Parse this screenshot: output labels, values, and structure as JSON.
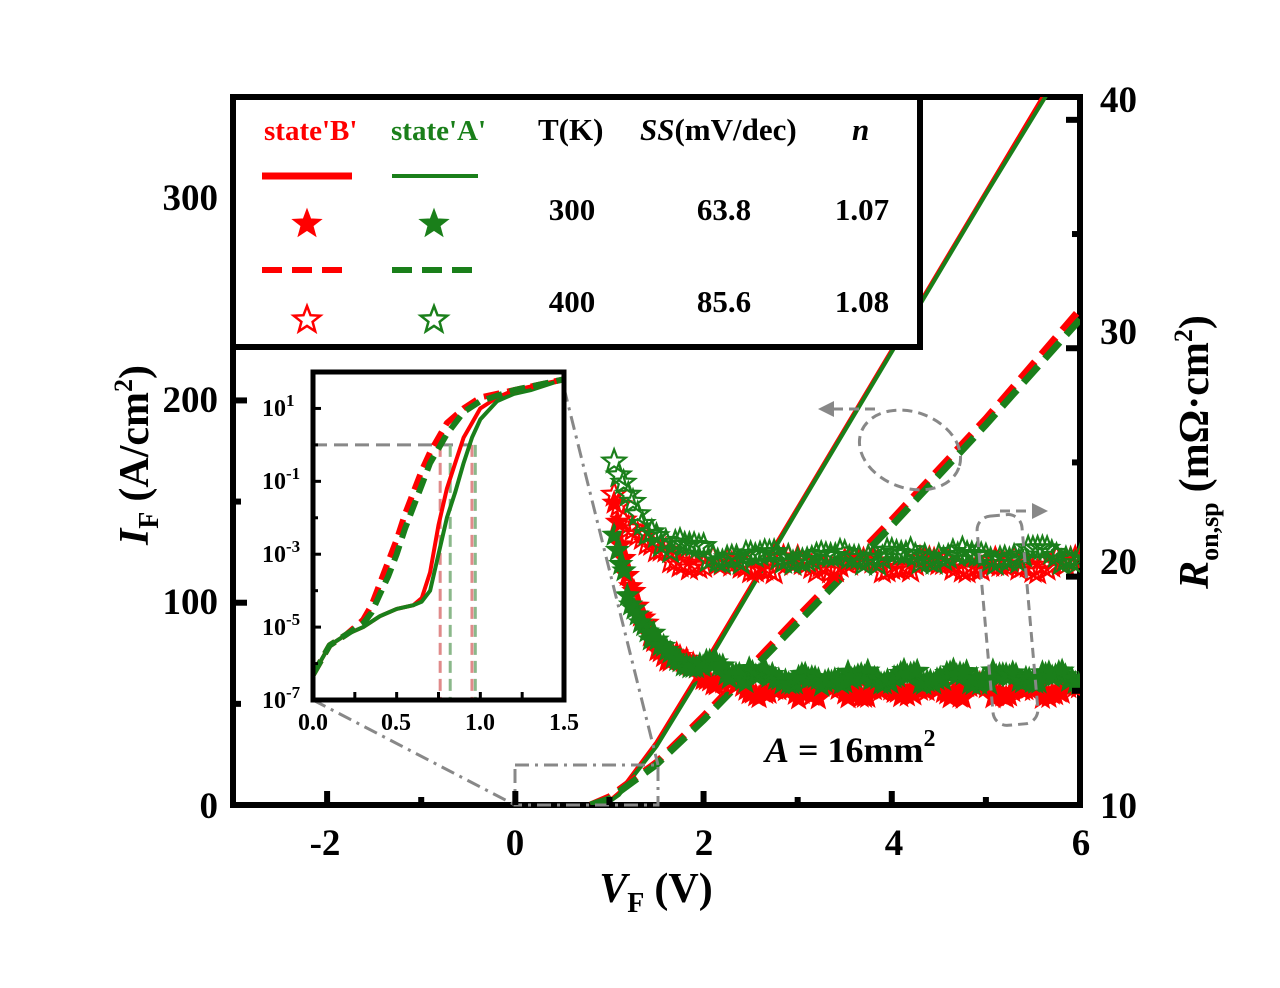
{
  "chart_data": {
    "type": "line",
    "x_axis": {
      "label_main": "V",
      "label_sub": "F",
      "label_unit": "(V)",
      "range": [
        -3,
        6
      ],
      "ticks": [
        "-2",
        "0",
        "2",
        "4",
        "6"
      ]
    },
    "y_axis_left": {
      "label_main": "I",
      "label_sub": "F",
      "label_unit_prefix": "(A/cm",
      "label_unit_sup": "2",
      "label_unit_suffix": ")",
      "range": [
        0,
        350
      ],
      "ticks": [
        "0",
        "100",
        "200",
        "300"
      ]
    },
    "y_axis_right": {
      "label_main": "R",
      "label_sub": "on,sp",
      "label_unit_prefix": "(mΩ·cm",
      "label_unit_sup": "2",
      "label_unit_suffix": ")",
      "range": [
        10,
        41
      ],
      "ticks": [
        "10",
        "20",
        "30",
        "40"
      ]
    },
    "legend": {
      "col_b": "state'B'",
      "col_a": "state'A'",
      "col_t": "T(K)",
      "col_ss_italic": "SS",
      "col_ss_rest": "(mV/dec)",
      "col_n": "n",
      "rows": [
        {
          "T": "300",
          "SS": "63.8",
          "n": "1.07"
        },
        {
          "T": "400",
          "SS": "85.6",
          "n": "1.08"
        }
      ]
    },
    "annotation": {
      "prefix": "A",
      "text": " = 16mm",
      "sup": "2"
    },
    "colors": {
      "state_B": "#ff0000",
      "state_A": "#1a7f1a",
      "guide": "#888888"
    },
    "series": [
      {
        "name": "state'B' 300 K I-V",
        "axis": "left",
        "style": "solid",
        "color": "#ff0000",
        "x": [
          0.95,
          1.1,
          1.5,
          2.0,
          3.0,
          4.0,
          5.0,
          6.0
        ],
        "y": [
          0,
          6,
          31,
          69,
          147,
          225,
          303,
          381
        ]
      },
      {
        "name": "state'A' 300 K I-V",
        "axis": "left",
        "style": "solid",
        "color": "#1a7f1a",
        "x": [
          0.95,
          1.1,
          1.5,
          2.0,
          3.0,
          4.0,
          5.0,
          6.0
        ],
        "y": [
          0,
          5,
          29,
          67,
          146,
          224,
          302,
          378
        ]
      },
      {
        "name": "state'B' 400 K I-V",
        "axis": "left",
        "style": "dashed",
        "color": "#ff0000",
        "x": [
          0.8,
          1.0,
          1.5,
          2.0,
          3.0,
          4.0,
          5.0,
          6.0
        ],
        "y": [
          0,
          4,
          21,
          44,
          93,
          141,
          191,
          245
        ]
      },
      {
        "name": "state'A' 400 K I-V",
        "axis": "left",
        "style": "dashed",
        "color": "#1a7f1a",
        "x": [
          0.8,
          1.0,
          1.5,
          2.0,
          3.0,
          4.0,
          5.0,
          6.0
        ],
        "y": [
          0,
          3,
          20,
          42,
          90,
          138,
          188,
          240
        ]
      },
      {
        "name": "state'B' 300 K Ron",
        "axis": "right",
        "marker": "filled-star",
        "color": "#ff0000",
        "x": [
          1.05,
          1.1,
          1.2,
          1.3,
          1.45,
          1.6,
          1.8,
          2.0,
          2.3,
          2.6,
          3.0,
          3.5,
          4.0,
          4.5,
          5.0,
          5.5,
          6.0
        ],
        "y": [
          23.5,
          22.0,
          19.8,
          18.5,
          17.4,
          16.6,
          16.1,
          15.7,
          15.2,
          15.0,
          15.0,
          15.0,
          15.0,
          15.0,
          15.0,
          15.0,
          15.0
        ]
      },
      {
        "name": "state'A' 300 K Ron",
        "axis": "right",
        "marker": "filled-star",
        "color": "#1a7f1a",
        "x": [
          1.05,
          1.1,
          1.2,
          1.3,
          1.45,
          1.6,
          1.8,
          2.0,
          2.3,
          2.6,
          3.0,
          3.5,
          4.0,
          4.5,
          5.0,
          5.5,
          6.0
        ],
        "y": [
          21.8,
          20.8,
          19.3,
          18.3,
          17.3,
          16.6,
          16.2,
          16.0,
          15.8,
          15.6,
          15.5,
          15.5,
          15.6,
          15.6,
          15.6,
          15.6,
          15.6
        ]
      },
      {
        "name": "state'B' 400 K Ron",
        "axis": "right",
        "marker": "open-star",
        "color": "#ff0000",
        "x": [
          1.05,
          1.15,
          1.3,
          1.5,
          1.7,
          2.0,
          2.4,
          3.0,
          3.5,
          4.0,
          4.5,
          5.0,
          5.5,
          6.0
        ],
        "y": [
          23.6,
          22.8,
          21.8,
          21.0,
          20.7,
          20.5,
          20.5,
          20.5,
          20.5,
          20.5,
          20.5,
          20.5,
          20.5,
          20.5
        ]
      },
      {
        "name": "state'A' 400 K Ron",
        "axis": "right",
        "marker": "open-star",
        "color": "#1a7f1a",
        "x": [
          1.05,
          1.15,
          1.3,
          1.5,
          1.7,
          2.0,
          2.4,
          3.0,
          3.5,
          4.0,
          4.5,
          5.0,
          5.5,
          6.0
        ],
        "y": [
          25.0,
          23.8,
          22.6,
          21.8,
          21.3,
          21.0,
          20.9,
          20.9,
          20.9,
          20.9,
          20.9,
          20.9,
          20.9,
          20.9
        ]
      }
    ],
    "inset": {
      "type": "line",
      "y_scale": "log",
      "x_range": [
        0.0,
        1.5
      ],
      "y_range_log10": [
        -7,
        2
      ],
      "x_ticks": [
        "0.0",
        "0.5",
        "1.0",
        "1.5"
      ],
      "y_ticks": [
        {
          "base": "10",
          "exp": "-7"
        },
        {
          "base": "10",
          "exp": "-5"
        },
        {
          "base": "10",
          "exp": "-3"
        },
        {
          "base": "10",
          "exp": "-1"
        },
        {
          "base": "10",
          "exp": "1"
        }
      ],
      "series": [
        {
          "name": "state'B' 300 K",
          "style": "solid",
          "color": "#ff0000",
          "x": [
            0.0,
            0.1,
            0.2,
            0.3,
            0.4,
            0.5,
            0.6,
            0.65,
            0.7,
            0.75,
            0.8,
            0.85,
            0.9,
            0.95,
            1.0,
            1.1,
            1.2,
            1.3,
            1.5
          ],
          "log10_y": [
            -6.3,
            -5.5,
            -5.2,
            -5.0,
            -4.7,
            -4.5,
            -4.4,
            -4.2,
            -3.5,
            -2.2,
            -1.2,
            -0.5,
            0.2,
            0.6,
            1.0,
            1.3,
            1.5,
            1.6,
            1.8
          ]
        },
        {
          "name": "state'A' 300 K",
          "style": "solid",
          "color": "#1a7f1a",
          "x": [
            0.0,
            0.1,
            0.2,
            0.3,
            0.4,
            0.5,
            0.6,
            0.65,
            0.7,
            0.75,
            0.8,
            0.85,
            0.9,
            0.95,
            1.0,
            1.1,
            1.2,
            1.3,
            1.5
          ],
          "log10_y": [
            -6.3,
            -5.5,
            -5.2,
            -5.0,
            -4.7,
            -4.5,
            -4.4,
            -4.3,
            -4.0,
            -3.0,
            -2.0,
            -1.3,
            -0.5,
            0.2,
            0.7,
            1.2,
            1.4,
            1.5,
            1.8
          ]
        },
        {
          "name": "state'B' 400 K",
          "style": "dashed",
          "color": "#ff0000",
          "x": [
            0.0,
            0.1,
            0.2,
            0.3,
            0.35,
            0.4,
            0.45,
            0.5,
            0.55,
            0.6,
            0.65,
            0.7,
            0.8,
            0.9,
            1.0,
            1.2,
            1.5
          ],
          "log10_y": [
            -6.3,
            -5.5,
            -5.2,
            -4.8,
            -4.4,
            -3.8,
            -3.2,
            -2.6,
            -1.9,
            -1.3,
            -0.7,
            -0.2,
            0.6,
            1.0,
            1.3,
            1.5,
            1.8
          ]
        },
        {
          "name": "state'A' 400 K",
          "style": "dashed",
          "color": "#1a7f1a",
          "x": [
            0.0,
            0.1,
            0.2,
            0.3,
            0.35,
            0.4,
            0.45,
            0.5,
            0.55,
            0.6,
            0.65,
            0.7,
            0.8,
            0.9,
            1.0,
            1.2,
            1.5
          ],
          "log10_y": [
            -6.3,
            -5.5,
            -5.2,
            -4.9,
            -4.6,
            -4.1,
            -3.6,
            -3.0,
            -2.3,
            -1.7,
            -1.1,
            -0.5,
            0.3,
            0.9,
            1.2,
            1.5,
            1.8
          ]
        }
      ]
    }
  }
}
